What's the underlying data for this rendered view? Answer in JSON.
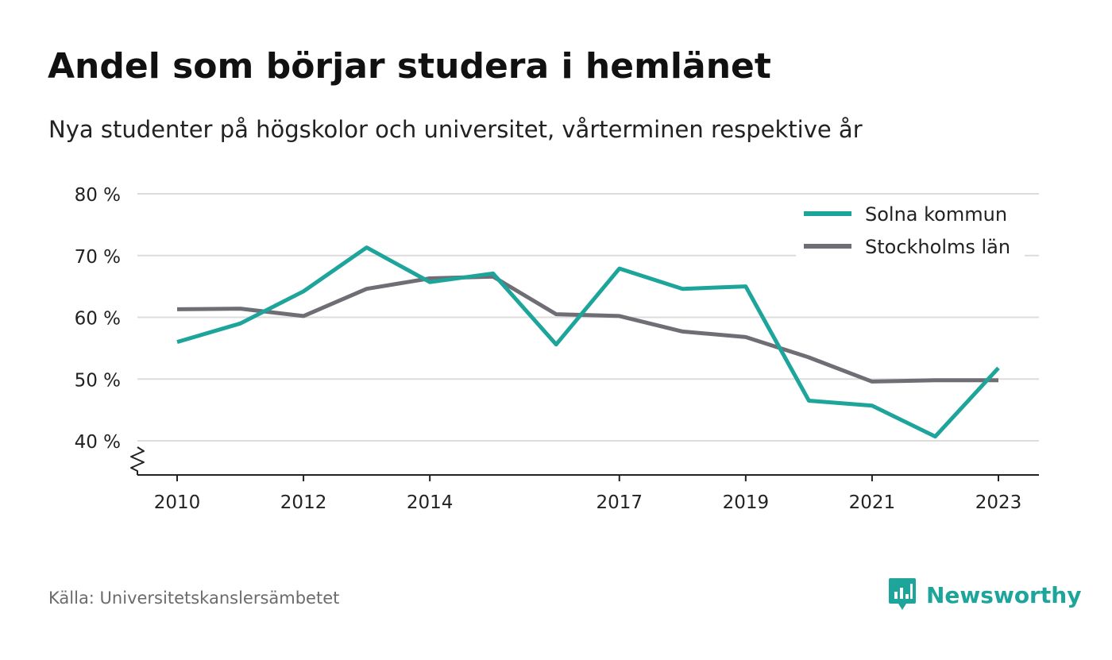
{
  "title": "Andel som börjar studera i hemlänet",
  "subtitle": "Nya studenter på högskolor och universitet, vårterminen respektive år",
  "source": "Källa: Universitetskanslersämbetet",
  "brand": {
    "name": "Newsworthy",
    "icon": "newsworthy-logo-icon",
    "color": "#1ea59b"
  },
  "chart_data": {
    "type": "line",
    "title": "Andel som börjar studera i hemlänet",
    "subtitle": "Nya studenter på högskolor och universitet, vårterminen respektive år",
    "x": [
      2010,
      2011,
      2012,
      2013,
      2014,
      2015,
      2016,
      2017,
      2018,
      2019,
      2020,
      2021,
      2022,
      2023
    ],
    "x_tick_labels": [
      "2010",
      "2012",
      "2014",
      "2017",
      "2019",
      "2021",
      "2023"
    ],
    "x_tick_values": [
      2010,
      2012,
      2014,
      2017,
      2019,
      2021,
      2023
    ],
    "y_tick_labels": [
      "40 %",
      "50 %",
      "60 %",
      "70 %",
      "80 %"
    ],
    "y_tick_values": [
      40,
      50,
      60,
      70,
      80
    ],
    "ylim": [
      40,
      80
    ],
    "y_axis_break": true,
    "grid": true,
    "legend_position": "top-right",
    "series": [
      {
        "name": "Solna kommun",
        "color": "#1ea59b",
        "values": [
          56.0,
          59.0,
          64.2,
          71.3,
          65.7,
          67.1,
          55.6,
          67.9,
          64.6,
          65.0,
          46.5,
          45.7,
          40.7,
          51.8
        ]
      },
      {
        "name": "Stockholms län",
        "color": "#6f6e75",
        "values": [
          61.3,
          61.4,
          60.2,
          64.6,
          66.3,
          66.6,
          60.5,
          60.2,
          57.7,
          56.8,
          53.5,
          49.6,
          49.8,
          49.8
        ]
      }
    ]
  }
}
